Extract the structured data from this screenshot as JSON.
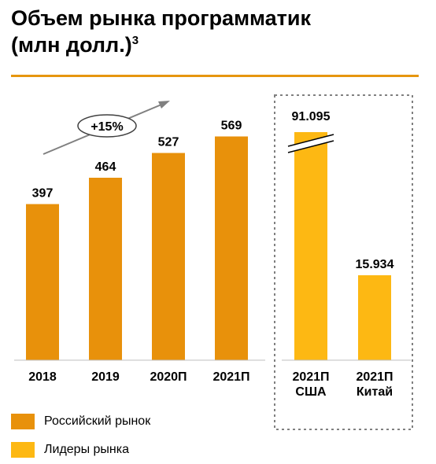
{
  "header": {
    "title_line1": "Объем рынка программатик",
    "title_line2": "(млн долл.)",
    "title_footnote": "3"
  },
  "colors": {
    "russian": "#e8910b",
    "leaders": "#fdb813",
    "rule": "#e6960f",
    "arrow": "#808080",
    "box_border": "#808080"
  },
  "chart_data": {
    "type": "bar",
    "title": "Объем рынка программатик (млн долл.)",
    "groups": [
      {
        "series": "Российский рынок",
        "categories": [
          "2018",
          "2019",
          "2020П",
          "2021П"
        ],
        "values": [
          397,
          464,
          527,
          569
        ],
        "labels": [
          "397",
          "464",
          "527",
          "569"
        ]
      },
      {
        "series": "Лидеры рынка",
        "categories": [
          "2021П США",
          "2021П Китай"
        ],
        "category_lines": [
          [
            "2021П",
            "США"
          ],
          [
            "2021П",
            "Китай"
          ]
        ],
        "values": [
          91095,
          15934
        ],
        "labels": [
          "91.095",
          "15.934"
        ],
        "axis_break": true
      }
    ],
    "annotation": "+15%",
    "legend": {
      "position": "bottom-left",
      "entries": [
        "Российский рынок",
        "Лидеры рынка"
      ]
    }
  }
}
